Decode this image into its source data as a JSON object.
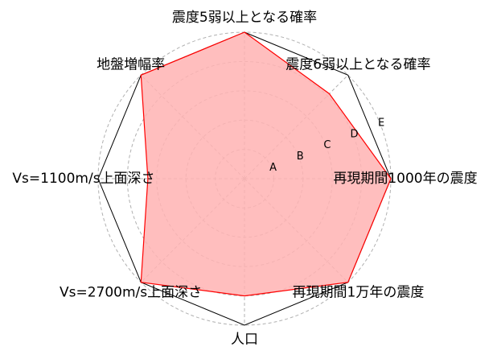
{
  "chart_data": {
    "type": "radar",
    "axes": [
      "震度5弱以上となる確率",
      "震度6弱以上となる確率",
      "再現期間1000年の震度",
      "再現期間1万年の震度",
      "人口",
      "Vs=2700m/s上面深さ",
      "Vs=1100m/s上面深さ",
      "地盤増幅率"
    ],
    "rings": [
      "A",
      "B",
      "C",
      "D",
      "E"
    ],
    "rmax": 5,
    "series": [
      {
        "values": [
          5,
          4.1,
          5,
          5,
          4,
          5,
          3.3,
          5
        ]
      }
    ],
    "grid": true,
    "colors": {
      "fill": "#ffb3b3",
      "line": "#ff0000",
      "frame": "#000000",
      "grid": "#b0b0b0"
    }
  }
}
